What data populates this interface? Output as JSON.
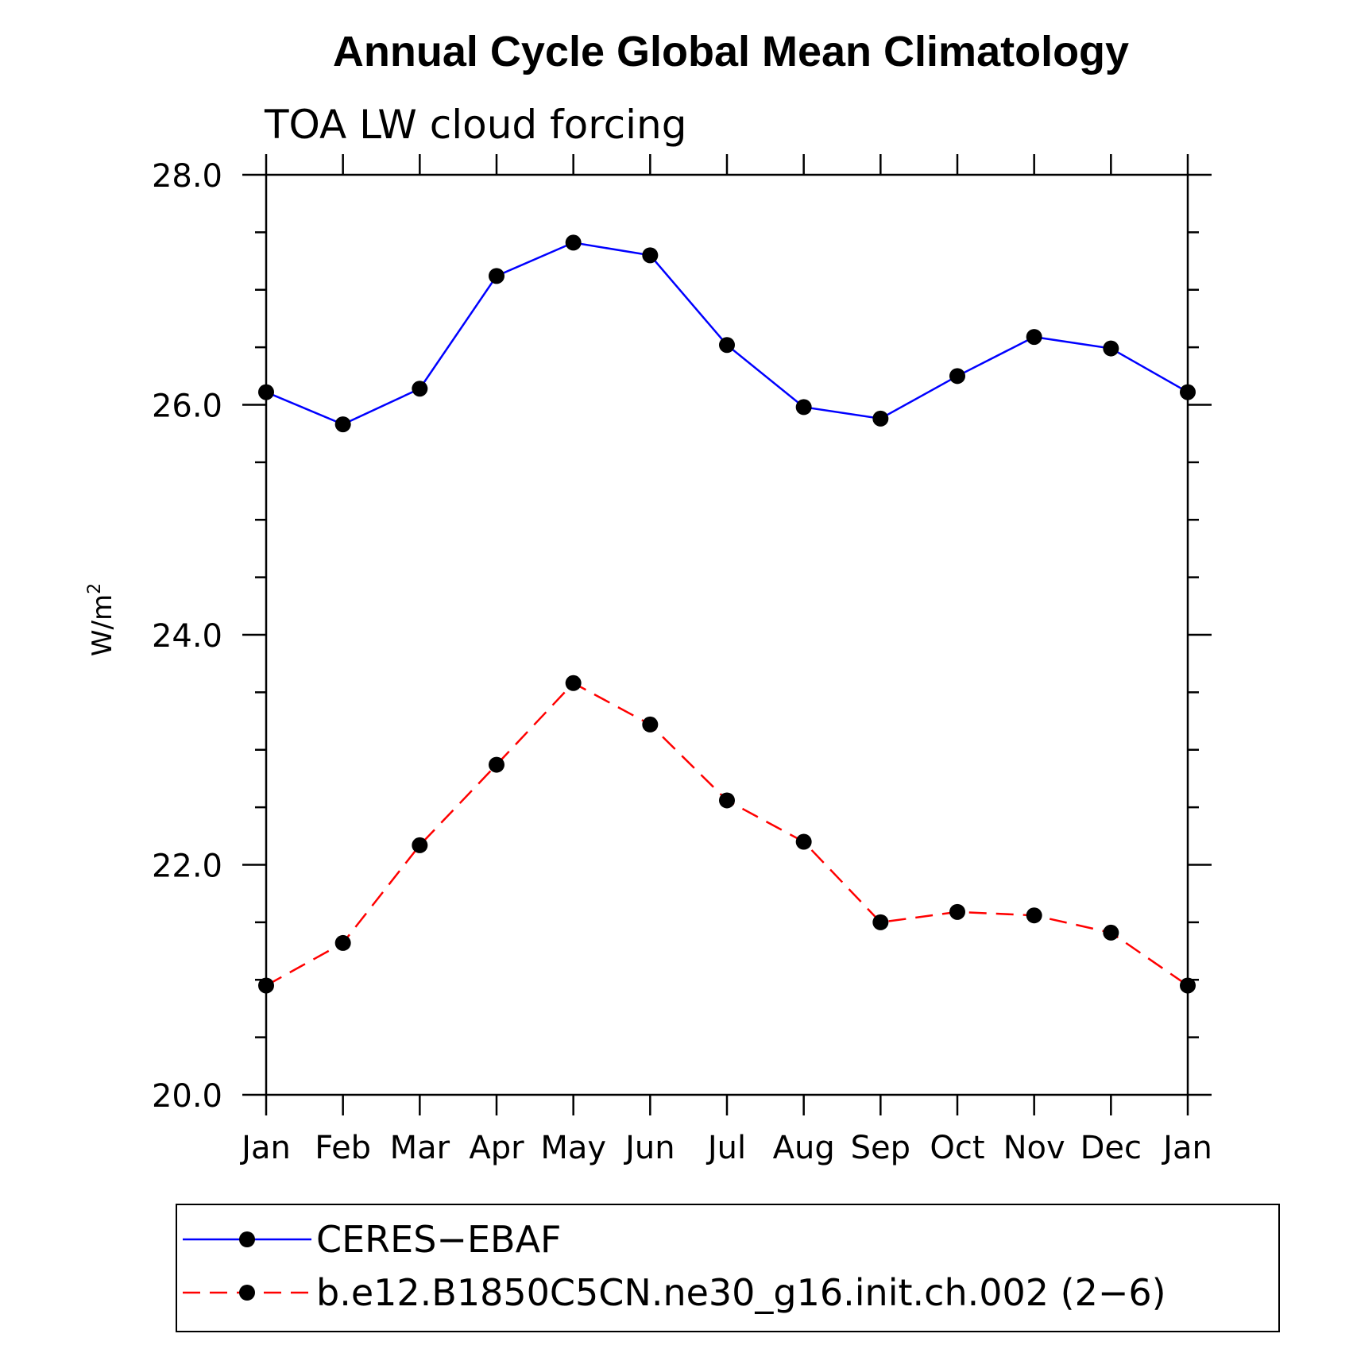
{
  "chart_data": {
    "type": "line",
    "title": "Annual Cycle Global Mean Climatology",
    "subtitle": "TOA LW cloud forcing",
    "xlabel": "",
    "ylabel": "W/m",
    "ylabel_superscript": "2",
    "categories": [
      "Jan",
      "Feb",
      "Mar",
      "Apr",
      "May",
      "Jun",
      "Jul",
      "Aug",
      "Sep",
      "Oct",
      "Nov",
      "Dec",
      "Jan"
    ],
    "ylim": [
      20.0,
      28.0
    ],
    "yticks": [
      "20.0",
      "22.0",
      "24.0",
      "26.0",
      "28.0"
    ],
    "grid": false,
    "legend_position": "bottom",
    "series": [
      {
        "name": "CERES−EBAF",
        "color": "#0000ff",
        "dash": "solid",
        "marker": "filled-circle",
        "values": [
          26.11,
          25.83,
          26.14,
          27.12,
          27.41,
          27.3,
          26.52,
          25.98,
          25.88,
          26.25,
          26.59,
          26.49,
          26.11
        ]
      },
      {
        "name": "b.e12.B1850C5CN.ne30_g16.init.ch.002 (2−6)",
        "color": "#ff0000",
        "dash": "dashed",
        "marker": "filled-circle",
        "values": [
          20.95,
          21.32,
          22.17,
          22.87,
          23.58,
          23.22,
          22.56,
          22.2,
          21.5,
          21.59,
          21.56,
          21.41,
          20.95
        ]
      }
    ]
  }
}
